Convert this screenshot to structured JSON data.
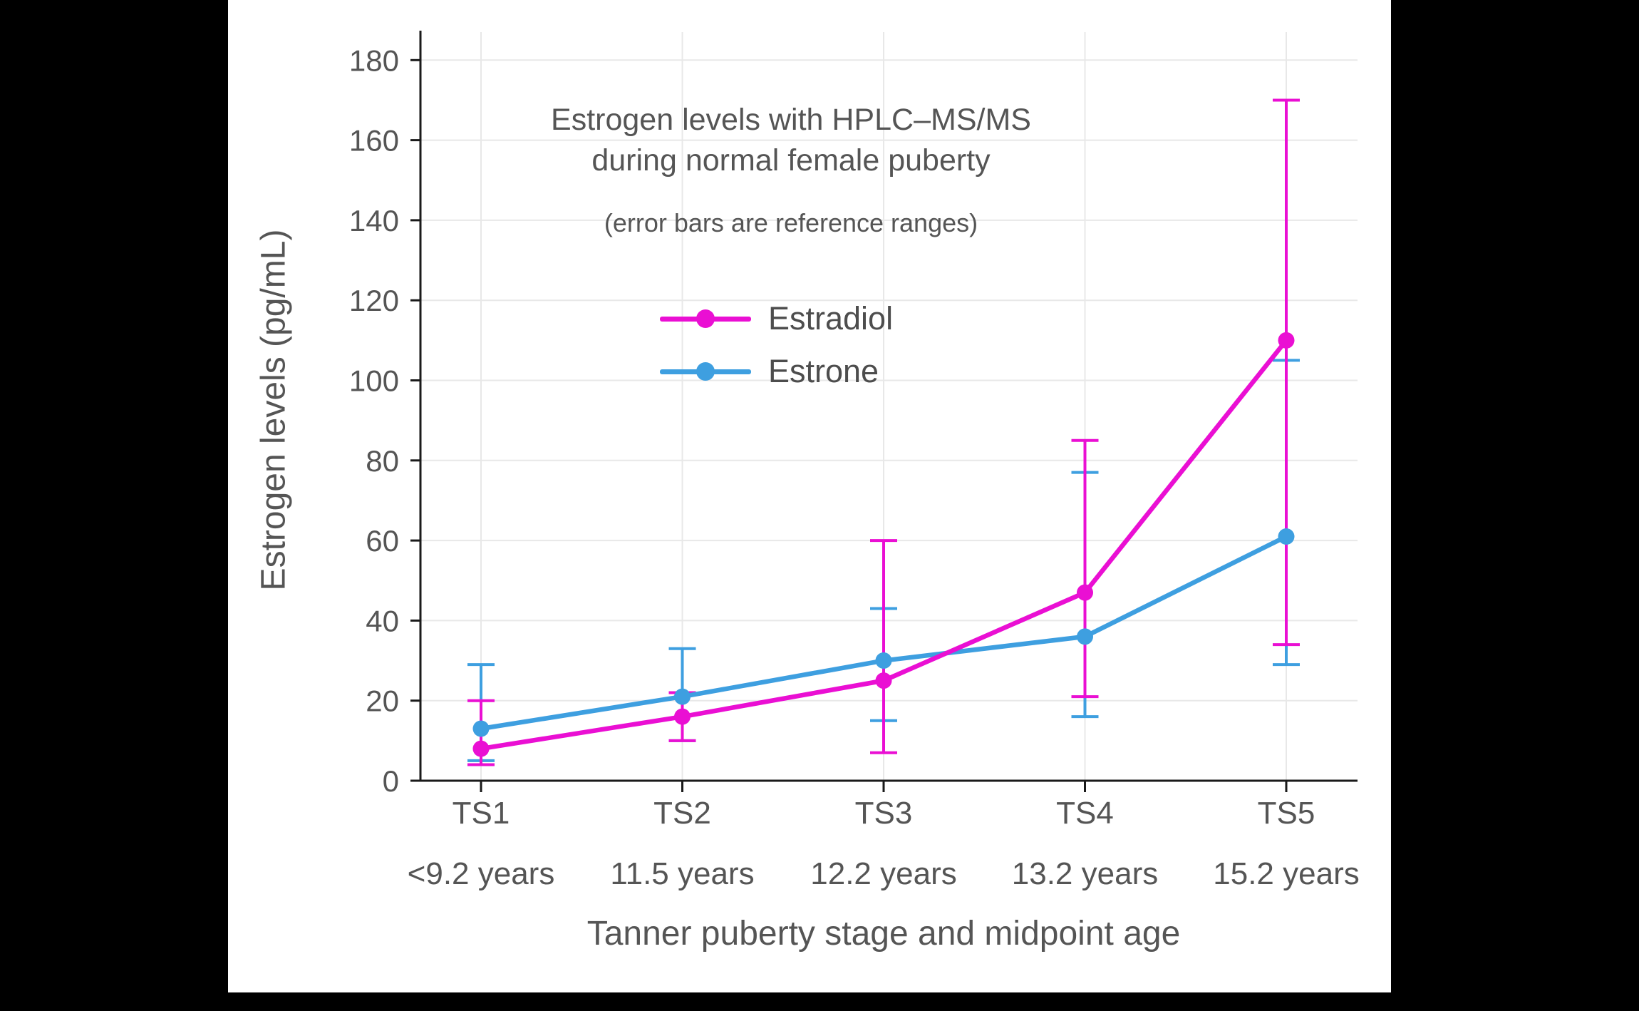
{
  "page": {
    "background": "#000000",
    "panel_background": "#ffffff"
  },
  "chart_data": {
    "type": "line",
    "title": "Estrogen levels with HPLC–MS/MS\nduring normal female puberty",
    "subtitle": "(error bars are reference ranges)",
    "xlabel": "Tanner puberty stage and midpoint age",
    "ylabel": "Estrogen levels (pg/mL)",
    "categories": [
      "TS1",
      "TS2",
      "TS3",
      "TS4",
      "TS5"
    ],
    "category_sublabels": [
      "<9.2 years",
      "11.5 years",
      "12.2 years",
      "13.2 years",
      "15.2 years"
    ],
    "yticks": [
      0,
      20,
      40,
      60,
      80,
      100,
      120,
      140,
      160,
      180
    ],
    "ylim": [
      0,
      187
    ],
    "grid": "both",
    "legend_position": "upper-left-inside",
    "text_color": "#555555",
    "grid_color": "#e8e8e8",
    "axis_color": "#1a1a1a",
    "series": [
      {
        "name": "Estradiol",
        "color": "#EA0FD3",
        "values": [
          8,
          16,
          25,
          47,
          110
        ],
        "range_low": [
          4,
          10,
          7,
          21,
          34
        ],
        "range_high": [
          20,
          22,
          60,
          85,
          170
        ]
      },
      {
        "name": "Estrone",
        "color": "#3E9FE0",
        "values": [
          13,
          21,
          30,
          36,
          61
        ],
        "range_low": [
          5,
          10,
          15,
          16,
          29
        ],
        "range_high": [
          29,
          33,
          43,
          77,
          105
        ]
      }
    ]
  }
}
